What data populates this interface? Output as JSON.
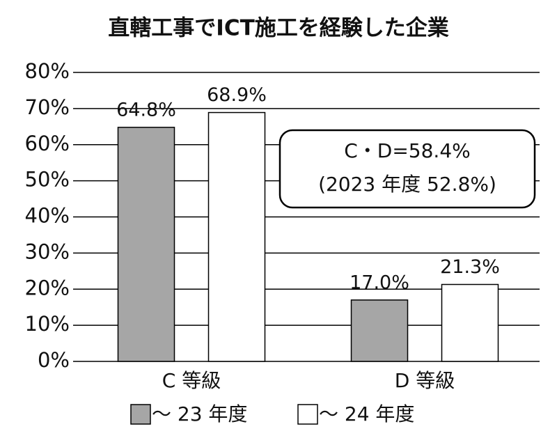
{
  "chart_data": {
    "type": "bar",
    "title": "直轄工事でICT施工を経験した企業",
    "categories": [
      "C 等級",
      "D 等級"
    ],
    "series": [
      {
        "name": "〜 23 年度",
        "color": "#a6a6a6",
        "values": [
          64.8,
          17.0
        ],
        "value_labels": [
          "64.8%",
          "17.0%"
        ]
      },
      {
        "name": "〜 24 年度",
        "color": "#ffffff",
        "values": [
          68.9,
          21.3
        ],
        "value_labels": [
          "68.9%",
          "21.3%"
        ]
      }
    ],
    "ylim": [
      0,
      80
    ],
    "yticks": [
      {
        "value": 0,
        "label": "0%"
      },
      {
        "value": 10,
        "label": "10%"
      },
      {
        "value": 20,
        "label": "20%"
      },
      {
        "value": 30,
        "label": "30%"
      },
      {
        "value": 40,
        "label": "40%"
      },
      {
        "value": 50,
        "label": "50%"
      },
      {
        "value": 60,
        "label": "60%"
      },
      {
        "value": 70,
        "label": "70%"
      },
      {
        "value": 80,
        "label": "80%"
      }
    ],
    "grid": true,
    "annotation": [
      "C・D=58.4%",
      "(2023 年度 52.8%)"
    ]
  }
}
